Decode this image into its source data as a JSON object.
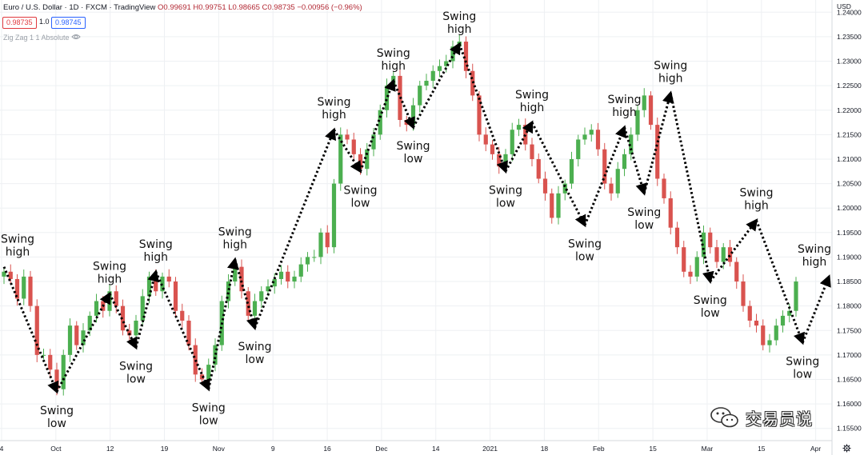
{
  "header": {
    "title": "Euro / U.S. Dollar · 1D · FXCM · TradingView",
    "ohlc": "O0.99691 H0.99751 L0.98665 C0.98735 −0.00956 (−0.96%)",
    "bid": "0.98735",
    "spread": "1.0",
    "ask": "0.98745",
    "indicator": "Zig Zag 1 1 Absolute"
  },
  "axis": {
    "currency": "USD"
  },
  "watermark": {
    "text": "交易员说"
  },
  "colors": {
    "up": "#4caf50",
    "down": "#d9534f",
    "grid": "#eef0f3",
    "zigzag": "#000000"
  },
  "chart_data": {
    "type": "candlestick",
    "instrument": "Euro / U.S. Dollar",
    "timeframe": "1D",
    "ylim": [
      1.1525,
      1.2425
    ],
    "y_ticks": [
      "1.15500",
      "1.16000",
      "1.16500",
      "1.17000",
      "1.17500",
      "1.18000",
      "1.18500",
      "1.19000",
      "1.19500",
      "1.20000",
      "1.20500",
      "1.21000",
      "1.21500",
      "1.22000",
      "1.22500",
      "1.23000",
      "1.23500",
      "1.24000"
    ],
    "x_ticks": [
      "4",
      "Oct",
      "12",
      "19",
      "Nov",
      "9",
      "16",
      "Dec",
      "14",
      "2021",
      "18",
      "Feb",
      "15",
      "Mar",
      "15",
      "Apr"
    ],
    "closes": [
      1.187,
      1.1855,
      1.1815,
      1.186,
      1.18,
      1.17,
      1.17,
      1.167,
      1.163,
      1.17,
      1.176,
      1.172,
      1.175,
      1.178,
      1.181,
      1.179,
      1.183,
      1.18,
      1.175,
      1.174,
      1.177,
      1.182,
      1.186,
      1.183,
      1.186,
      1.185,
      1.179,
      1.177,
      1.172,
      1.166,
      1.165,
      1.168,
      1.172,
      1.181,
      1.185,
      1.188,
      1.183,
      1.178,
      1.181,
      1.183,
      1.184,
      1.1855,
      1.187,
      1.185,
      1.186,
      1.1885,
      1.19,
      1.19,
      1.195,
      1.192,
      1.205,
      1.215,
      1.214,
      1.211,
      1.208,
      1.212,
      1.215,
      1.22,
      1.225,
      1.227,
      1.218,
      1.217,
      1.221,
      1.225,
      1.226,
      1.228,
      1.229,
      1.23,
      1.233,
      1.234,
      1.228,
      1.223,
      1.215,
      1.213,
      1.211,
      1.2085,
      1.211,
      1.216,
      1.217,
      1.213,
      1.21,
      1.206,
      1.203,
      1.198,
      1.203,
      1.205,
      1.21,
      1.214,
      1.215,
      1.216,
      1.212,
      1.205,
      1.203,
      1.208,
      1.211,
      1.215,
      1.22,
      1.223,
      1.217,
      1.206,
      1.202,
      1.196,
      1.192,
      1.187,
      1.186,
      1.19,
      1.195,
      1.192,
      1.189,
      1.192,
      1.189,
      1.185,
      1.18,
      1.177,
      1.176,
      1.172,
      1.173,
      1.176,
      1.178,
      1.179,
      1.185
    ],
    "zigzag": [
      {
        "bar": 0,
        "y": 1.188,
        "label": [
          "Swing",
          "high"
        ]
      },
      {
        "bar": 8,
        "y": 1.1625,
        "label": [
          "Swing",
          "low"
        ]
      },
      {
        "bar": 16,
        "y": 1.1825,
        "label": [
          "Swing",
          "high"
        ]
      },
      {
        "bar": 20,
        "y": 1.1715,
        "label": [
          "Swing",
          "low"
        ]
      },
      {
        "bar": 23,
        "y": 1.187,
        "label": [
          "Swing",
          "high"
        ]
      },
      {
        "bar": 31,
        "y": 1.163,
        "label": [
          "Swing",
          "low"
        ]
      },
      {
        "bar": 35,
        "y": 1.1895,
        "label": [
          "Swing",
          "high"
        ]
      },
      {
        "bar": 38,
        "y": 1.1755,
        "label": [
          "Swing",
          "low"
        ]
      },
      {
        "bar": 50,
        "y": 1.216,
        "label": [
          "Swing",
          "high"
        ]
      },
      {
        "bar": 54,
        "y": 1.2075,
        "label": [
          "Swing",
          "low"
        ]
      },
      {
        "bar": 59,
        "y": 1.226,
        "label": [
          "Swing",
          "high"
        ]
      },
      {
        "bar": 62,
        "y": 1.2165,
        "label": [
          "Swing",
          "low"
        ]
      },
      {
        "bar": 69,
        "y": 1.2335,
        "label": [
          "Swing",
          "high"
        ]
      },
      {
        "bar": 76,
        "y": 1.2075,
        "label": [
          "Swing",
          "low"
        ]
      },
      {
        "bar": 80,
        "y": 1.2175,
        "label": [
          "Swing",
          "high"
        ]
      },
      {
        "bar": 88,
        "y": 1.1965,
        "label": [
          "Swing",
          "low"
        ]
      },
      {
        "bar": 94,
        "y": 1.2165,
        "label": [
          "Swing",
          "high"
        ]
      },
      {
        "bar": 97,
        "y": 1.203,
        "label": [
          "Swing",
          "low"
        ]
      },
      {
        "bar": 101,
        "y": 1.2235,
        "label": [
          "Swing",
          "high"
        ]
      },
      {
        "bar": 107,
        "y": 1.185,
        "label": [
          "Swing",
          "low"
        ]
      },
      {
        "bar": 114,
        "y": 1.1975,
        "label": [
          "Swing",
          "high"
        ]
      },
      {
        "bar": 121,
        "y": 1.1725,
        "label": [
          "Swing",
          "low"
        ]
      },
      {
        "bar": 125,
        "y": 1.186,
        "label": [
          "Swing",
          "high"
        ]
      }
    ]
  }
}
